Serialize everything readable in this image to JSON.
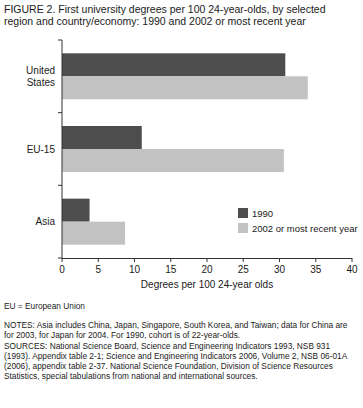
{
  "chart_data": {
    "type": "bar",
    "orientation": "horizontal",
    "title": "FIGURE 2.  First university degrees per 100 24-year-olds, by selected region and country/economy: 1990 and 2002 or most recent year",
    "x_label": "Degrees per 100 24-year olds",
    "categories": [
      "United States",
      "EU-15",
      "Asia"
    ],
    "series": [
      {
        "name": "1990",
        "color": "#4d4d4d",
        "values": [
          30.8,
          11.0,
          3.8
        ]
      },
      {
        "name": "2002 or most recent year",
        "color": "#c2c2c2",
        "values": [
          33.9,
          30.6,
          8.7
        ]
      }
    ],
    "xlim": [
      0,
      40
    ],
    "xticks": [
      0,
      5,
      10,
      15,
      20,
      25,
      30,
      35,
      40
    ],
    "grid": false,
    "legend": "lower right",
    "annotations": [
      "EU = European Union",
      "NOTES: Asia includes China, Japan, Singapore, South Korea, and Taiwan; data for China are for 2003, for Japan for 2004. For 1990, cohort is of 22-year-olds.",
      "SOURCES: National Science Board, Science and Engineering Indicators 1993, NSB 931 (1993). Appendix table 2-1; Science and Engineering Indicators 2006, Volume 2, NSB 06-01A (2006), appendix table 2-37. National Science Foundation, Division of Science Resources Statistics, special tabulations from national and international sources."
    ]
  }
}
